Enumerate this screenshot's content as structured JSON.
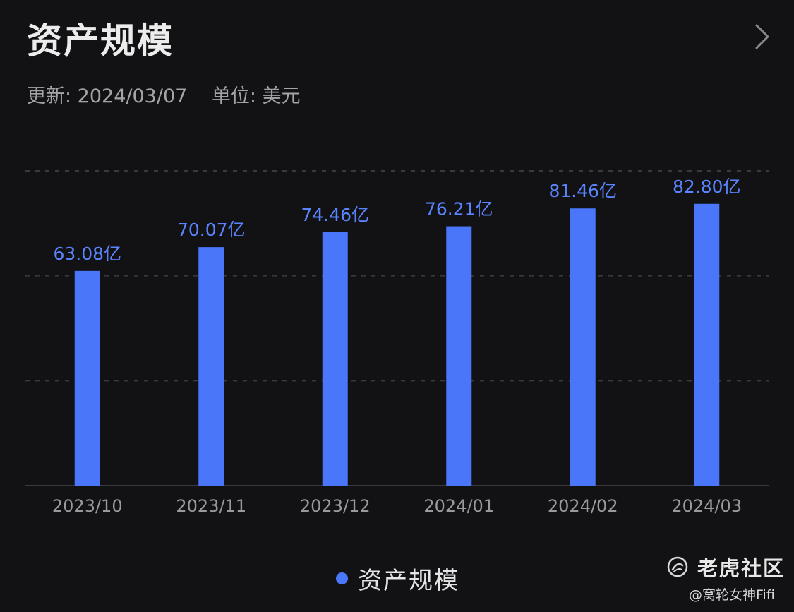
{
  "header": {
    "title": "资产规模",
    "updated": "更新: 2024/03/07",
    "unit": "单位: 美元"
  },
  "chart_data": {
    "type": "bar",
    "categories": [
      "2023/10",
      "2023/11",
      "2023/12",
      "2024/01",
      "2024/02",
      "2024/03"
    ],
    "values": [
      63.08,
      70.07,
      74.46,
      76.21,
      81.46,
      82.8
    ],
    "value_labels": [
      "63.08亿",
      "70.07亿",
      "74.46亿",
      "76.21亿",
      "81.46亿",
      "82.80亿"
    ],
    "ylim": [
      0,
      92.5
    ],
    "grid": true,
    "legend": "bottom-center",
    "series": [
      {
        "name": "资产规模",
        "color": "#4a76fa"
      }
    ]
  },
  "watermark": {
    "brand": "老虎社区",
    "handle": "@窝轮女神Fifi"
  },
  "colors": {
    "background": "#121215",
    "bar": "#4a76fa",
    "label": "#5b85ff"
  }
}
